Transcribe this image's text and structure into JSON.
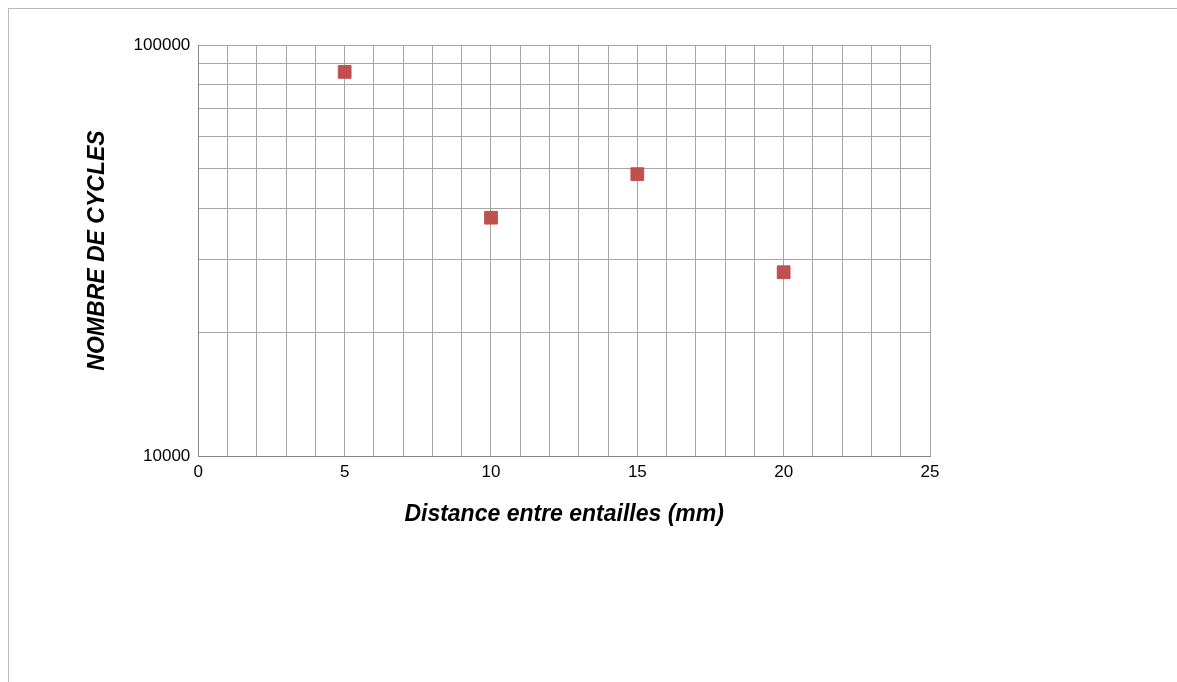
{
  "chart_data": {
    "type": "scatter",
    "xlabel": "Distance entre entailles (mm)",
    "ylabel": "NOMBRE DE CYCLES",
    "x": [
      5,
      10,
      15,
      20
    ],
    "series": [
      {
        "color": "#c0504d",
        "values": [
          86000,
          38000,
          48500,
          28000
        ]
      }
    ],
    "xlim": [
      0,
      25
    ],
    "xticks": [
      0,
      {
        "value": 1,
        "label": null
      },
      {
        "value": 2,
        "label": null
      },
      {
        "value": 3,
        "label": null
      },
      {
        "value": 4,
        "label": null
      },
      5,
      {
        "value": 6,
        "label": null
      },
      {
        "value": 7,
        "label": null
      },
      {
        "value": 8,
        "label": null
      },
      {
        "value": 9,
        "label": null
      },
      10,
      {
        "value": 11,
        "label": null
      },
      {
        "value": 12,
        "label": null
      },
      {
        "value": 13,
        "label": null
      },
      {
        "value": 14,
        "label": null
      },
      15,
      {
        "value": 16,
        "label": null
      },
      {
        "value": 17,
        "label": null
      },
      {
        "value": 18,
        "label": null
      },
      {
        "value": 19,
        "label": null
      },
      20,
      {
        "value": 21,
        "label": null
      },
      {
        "value": 22,
        "label": null
      },
      {
        "value": 23,
        "label": null
      },
      {
        "value": 24,
        "label": null
      },
      25
    ],
    "ylim": [
      10000,
      100000
    ],
    "yticks": [
      10000,
      {
        "value": 20000,
        "label": null
      },
      {
        "value": 30000,
        "label": null
      },
      {
        "value": 40000,
        "label": null
      },
      {
        "value": 50000,
        "label": null
      },
      {
        "value": 60000,
        "label": null
      },
      {
        "value": 70000,
        "label": null
      },
      {
        "value": 80000,
        "label": null
      },
      {
        "value": 90000,
        "label": null
      },
      100000
    ],
    "log": "y",
    "grid": true,
    "marker": "square",
    "legend": false
  }
}
